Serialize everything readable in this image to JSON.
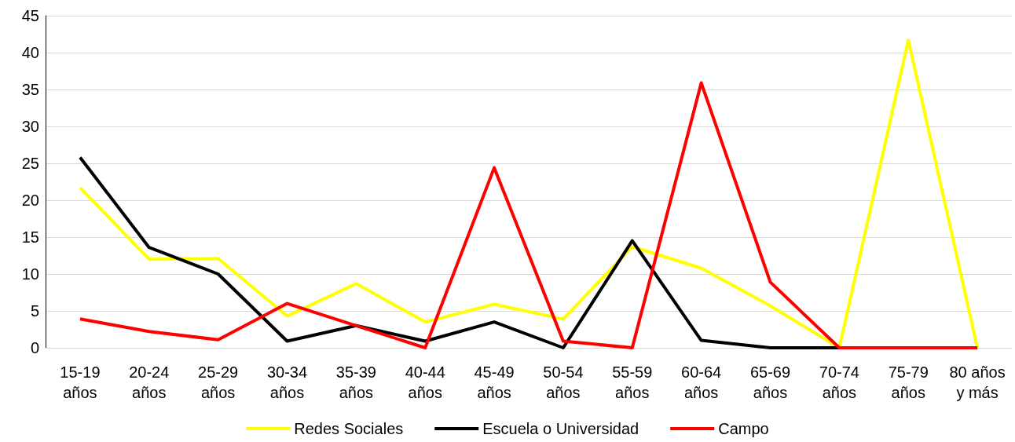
{
  "chart_data": {
    "type": "line",
    "categories": [
      "15-19\naños",
      "20-24\naños",
      "25-29\naños",
      "30-34\naños",
      "35-39\naños",
      "40-44\naños",
      "45-49\naños",
      "50-54\naños",
      "55-59\naños",
      "60-64\naños",
      "65-69\naños",
      "70-74\naños",
      "75-79\naños",
      "80 años\ny más"
    ],
    "series": [
      {
        "name": "Redes Sociales",
        "color": "#ffff00",
        "values": [
          21.7,
          12.0,
          12.1,
          4.3,
          8.7,
          3.5,
          5.9,
          3.9,
          13.7,
          10.8,
          5.7,
          0,
          41.7,
          0
        ]
      },
      {
        "name": "Escuela o Universidad",
        "color": "#000000",
        "values": [
          25.8,
          13.6,
          10.0,
          0.9,
          3.0,
          0.9,
          3.5,
          0,
          14.5,
          1.0,
          0,
          0,
          0,
          0
        ]
      },
      {
        "name": "Campo",
        "color": "#ff0000",
        "values": [
          3.9,
          2.2,
          1.1,
          6.0,
          3.0,
          0,
          24.4,
          0.9,
          0,
          35.9,
          8.9,
          0,
          0,
          0
        ]
      }
    ],
    "ylim": [
      0,
      45
    ],
    "yticks": [
      0,
      5,
      10,
      15,
      20,
      25,
      30,
      35,
      40,
      45
    ],
    "grid": "y",
    "legend": "bottom",
    "marker": "none",
    "line_style": "solid"
  }
}
